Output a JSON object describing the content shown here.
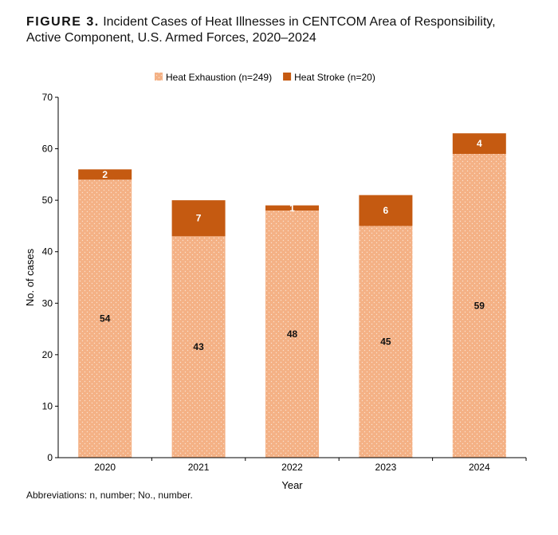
{
  "figure": {
    "label": "FIGURE 3.",
    "title_line1": "Incident Cases of Heat Illnesses in CENTCOM Area of Responsibility,",
    "title_line2": "Active Component, U.S. Armed Forces, 2020–2024"
  },
  "footnote": "Abbreviations: n, number; No., number.",
  "chart_data": {
    "type": "bar",
    "stacked": true,
    "categories": [
      "2020",
      "2021",
      "2022",
      "2023",
      "2024"
    ],
    "series": [
      {
        "name": "Heat Exhaustion (n=249)",
        "values": [
          54,
          43,
          48,
          45,
          59
        ],
        "color": "#f4b185",
        "label_color": "#111111"
      },
      {
        "name": "Heat Stroke (n=20)",
        "values": [
          2,
          7,
          1,
          6,
          4
        ],
        "color": "#c55a11",
        "label_color": "#ffffff"
      }
    ],
    "xlabel": "Year",
    "ylabel": "No. of cases",
    "ylim": [
      0,
      70
    ],
    "yticks": [
      0,
      10,
      20,
      30,
      40,
      50,
      60,
      70
    ],
    "legend_position": "top",
    "grid": false
  }
}
